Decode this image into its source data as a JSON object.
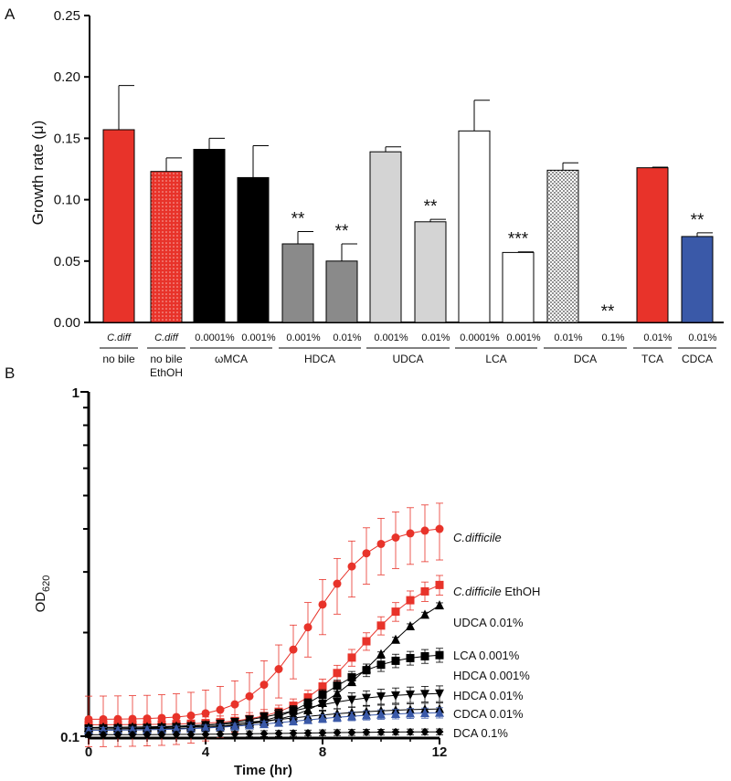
{
  "chart_data": [
    {
      "panel": "A",
      "type": "bar",
      "ylabel": "Growth rate (μ)",
      "ylim": [
        0,
        0.25
      ],
      "yticks": [
        "0.00",
        "0.05",
        "0.10",
        "0.15",
        "0.20",
        "0.25"
      ],
      "bars": [
        {
          "label": "C.diff",
          "italic": true,
          "value": 0.157,
          "err": 0.036,
          "color": "#e8332a",
          "pattern": "solid",
          "sig": ""
        },
        {
          "label": "C.diff",
          "italic": true,
          "value": 0.123,
          "err": 0.011,
          "color": "#e8332a",
          "pattern": "dots",
          "sig": ""
        },
        {
          "label": "0.0001%",
          "value": 0.141,
          "err": 0.009,
          "color": "#000000",
          "pattern": "solid",
          "sig": ""
        },
        {
          "label": "0.001%",
          "value": 0.118,
          "err": 0.026,
          "color": "#000000",
          "pattern": "solid",
          "sig": ""
        },
        {
          "label": "0.001%",
          "value": 0.064,
          "err": 0.01,
          "color": "#8a8a8a",
          "pattern": "solid",
          "sig": "**"
        },
        {
          "label": "0.01%",
          "value": 0.05,
          "err": 0.014,
          "color": "#8a8a8a",
          "pattern": "solid",
          "sig": "**"
        },
        {
          "label": "0.001%",
          "value": 0.139,
          "err": 0.004,
          "color": "#d4d4d4",
          "pattern": "solid",
          "sig": ""
        },
        {
          "label": "0.01%",
          "value": 0.082,
          "err": 0.002,
          "color": "#d4d4d4",
          "pattern": "solid",
          "sig": "**"
        },
        {
          "label": "0.0001%",
          "value": 0.156,
          "err": 0.025,
          "color": "#ffffff",
          "pattern": "solid",
          "sig": ""
        },
        {
          "label": "0.001%",
          "value": 0.057,
          "err": 0.0005,
          "color": "#ffffff",
          "pattern": "solid",
          "sig": "***"
        },
        {
          "label": "0.01%",
          "value": 0.124,
          "err": 0.006,
          "color": "#dddddd",
          "pattern": "stipple",
          "sig": ""
        },
        {
          "label": "0.1%",
          "value": 0.0,
          "err": 0,
          "color": "#ffffff",
          "pattern": "solid",
          "sig": "**"
        },
        {
          "label": "0.01%",
          "value": 0.126,
          "err": 0.0005,
          "color": "#e8332a",
          "pattern": "solid",
          "sig": ""
        },
        {
          "label": "0.01%",
          "value": 0.07,
          "err": 0.003,
          "color": "#3a59a8",
          "pattern": "solid",
          "sig": "**"
        }
      ],
      "groups": [
        {
          "label": "no bile",
          "span": [
            0,
            0
          ]
        },
        {
          "label": "no bile\nEthOH",
          "span": [
            1,
            1
          ]
        },
        {
          "label": "ωMCA",
          "span": [
            2,
            3
          ]
        },
        {
          "label": "HDCA",
          "span": [
            4,
            5
          ]
        },
        {
          "label": "UDCA",
          "span": [
            6,
            7
          ]
        },
        {
          "label": "LCA",
          "span": [
            8,
            9
          ]
        },
        {
          "label": "DCA",
          "span": [
            10,
            11
          ]
        },
        {
          "label": "TCA",
          "span": [
            12,
            12
          ]
        },
        {
          "label": "CDCA",
          "span": [
            13,
            13
          ]
        }
      ]
    },
    {
      "panel": "B",
      "type": "line",
      "xlabel": "Time (hr)",
      "ylabel": "OD",
      "ylabel_sub": "620",
      "yscale": "log",
      "xlim": [
        0,
        12
      ],
      "ylim": [
        0.1,
        1
      ],
      "xticks": [
        "0",
        "4",
        "8",
        "12"
      ],
      "yticks": [
        "0.1",
        "1"
      ],
      "series": [
        {
          "name": "C.difficile",
          "italic": "C.difficile",
          "suffix": "",
          "color": "#e8332a",
          "marker": "circle",
          "start": 0.112,
          "end": 0.4,
          "mid": 7.6,
          "k": 0.95,
          "err": 0.075
        },
        {
          "name": "C.difficile EthOH",
          "italic": "C.difficile",
          "suffix": " EthOH",
          "color": "#e8332a",
          "marker": "square",
          "start": 0.108,
          "end": 0.275,
          "mid": 9.3,
          "k": 0.85,
          "err": 0.018
        },
        {
          "name": "UDCA 0.01%",
          "italic": "",
          "suffix": "UDCA 0.01%",
          "color": "#000000",
          "marker": "triangle-up",
          "start": 0.106,
          "end": 0.24,
          "mid": 10.0,
          "k": 0.8,
          "err": 0.004
        },
        {
          "name": "LCA 0.001%",
          "italic": "",
          "suffix": "LCA 0.001%",
          "color": "#000000",
          "marker": "square",
          "start": 0.105,
          "end": 0.172,
          "mid": 8.2,
          "k": 0.95,
          "err": 0.008
        },
        {
          "name": "HDCA 0.001%",
          "italic": "",
          "suffix": "HDCA 0.001%",
          "color": "#000000",
          "marker": "triangle-down",
          "start": 0.105,
          "end": 0.133,
          "mid": 7.0,
          "k": 0.7,
          "err": 0.007
        },
        {
          "name": "HDCA 0.01%",
          "italic": "",
          "suffix": "HDCA 0.01%",
          "color": "#000000",
          "marker": "triangle-up",
          "start": 0.106,
          "end": 0.12,
          "mid": 7.0,
          "k": 0.6,
          "err": 0.005
        },
        {
          "name": "CDCA 0.01%",
          "italic": "",
          "suffix": "CDCA 0.01%",
          "color": "#3a59a8",
          "marker": "triangle-up",
          "start": 0.104,
          "end": 0.117,
          "mid": 7.0,
          "k": 0.6,
          "err": 0.004
        },
        {
          "name": "DCA 0.1%",
          "italic": "",
          "suffix": "DCA 0.1%",
          "color": "#000000",
          "marker": "diamond",
          "start": 0.101,
          "end": 0.103,
          "mid": 7.0,
          "k": 0.5,
          "err": 0.002
        }
      ]
    }
  ]
}
